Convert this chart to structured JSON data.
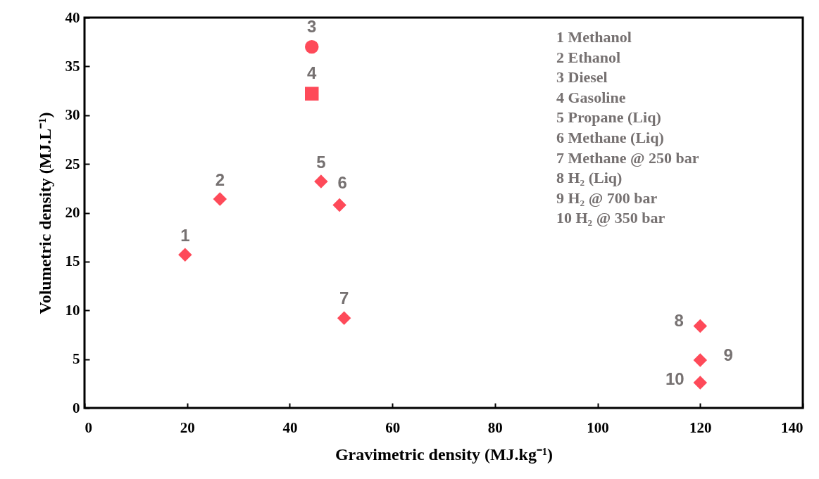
{
  "chart_data": {
    "type": "scatter",
    "xlabel": "Gravimetric density (MJ.kg⁻¹)",
    "ylabel": "Volumetric density (MJ.L⁻¹)",
    "xlim": [
      0,
      140
    ],
    "xticks": [
      0,
      20,
      40,
      60,
      80,
      100,
      120,
      140
    ],
    "ylim": [
      0,
      40
    ],
    "yticks": [
      0,
      5,
      10,
      15,
      20,
      25,
      30,
      35,
      40
    ],
    "grid": false,
    "legend": false,
    "series": [
      {
        "color": "#fe4a59",
        "marker": "diamond",
        "x": [
          19.6,
          26.4,
          46.1,
          49.7,
          50.6,
          120,
          120,
          120
        ],
        "values": [
          15.7,
          21.4,
          23.2,
          20.8,
          9.2,
          8.4,
          4.9,
          2.6
        ]
      },
      {
        "color": "#fe4a59",
        "marker": "circle",
        "x": [
          44.3
        ],
        "values": [
          37.0
        ]
      },
      {
        "color": "#fe4a59",
        "marker": "square",
        "x": [
          44.3
        ],
        "values": [
          32.2
        ]
      }
    ],
    "annotations": [
      {
        "text": "1",
        "x": 19.6,
        "y": 15.7
      },
      {
        "text": "2",
        "x": 26.4,
        "y": 21.4
      },
      {
        "text": "3",
        "x": 44.3,
        "y": 37.0
      },
      {
        "text": "4",
        "x": 44.3,
        "y": 32.2
      },
      {
        "text": "5",
        "x": 46.1,
        "y": 23.2
      },
      {
        "text": "6",
        "x": 49.7,
        "y": 20.8
      },
      {
        "text": "7",
        "x": 50.6,
        "y": 9.2
      },
      {
        "text": "8",
        "x": 120,
        "y": 8.4
      },
      {
        "text": "9",
        "x": 120,
        "y": 4.9
      },
      {
        "text": "10",
        "x": 120,
        "y": 2.6
      },
      "1 Methanol",
      "2 Ethanol",
      "3 Diesel",
      "4 Gasoline",
      "5 Propane (Liq)",
      "6 Methane (Liq)",
      "7 Methane @ 250 bar",
      "8 H₂ (Liq)",
      "9 H₂ @ 700 bar",
      "10 H₂ @ 350 bar"
    ]
  }
}
